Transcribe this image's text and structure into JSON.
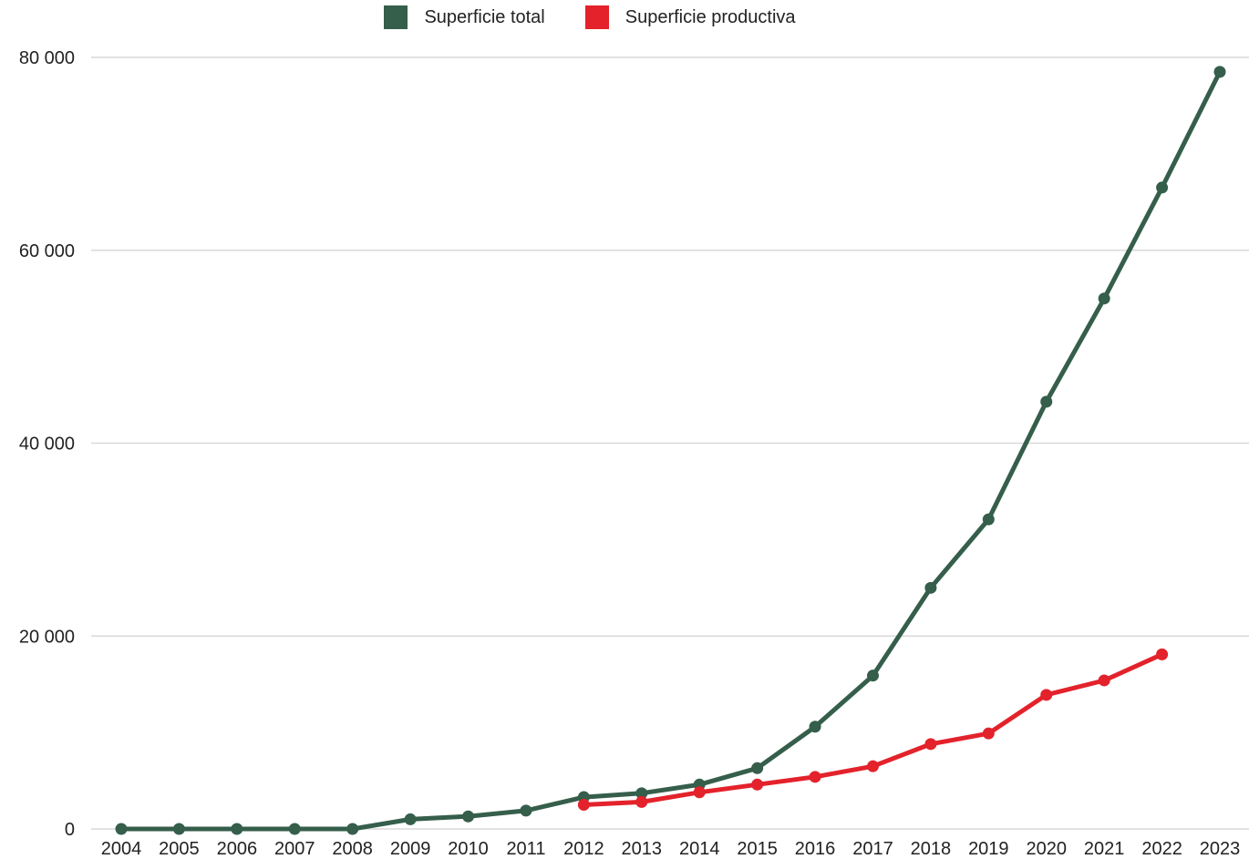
{
  "chart_data": {
    "type": "line",
    "x": [
      "2004",
      "2005",
      "2006",
      "2007",
      "2008",
      "2009",
      "2010",
      "2011",
      "2012",
      "2013",
      "2014",
      "2015",
      "2016",
      "2017",
      "2018",
      "2019",
      "2020",
      "2021",
      "2022",
      "2023"
    ],
    "series": [
      {
        "name": "Superficie total",
        "color": "#355e4b",
        "values": [
          0,
          0,
          0,
          0,
          0,
          1000,
          1300,
          1900,
          3300,
          3700,
          4600,
          6300,
          10600,
          15900,
          25000,
          32100,
          44300,
          55000,
          66500,
          78500
        ]
      },
      {
        "name": "Superficie productiva",
        "color": "#e3222b",
        "values": [
          null,
          null,
          null,
          null,
          null,
          null,
          null,
          null,
          2500,
          2800,
          3800,
          4600,
          5400,
          6500,
          8800,
          9900,
          13900,
          15400,
          18100,
          null
        ]
      }
    ],
    "yticks": [
      0,
      20000,
      40000,
      60000,
      80000
    ],
    "ytick_labels": [
      "0",
      "20 000",
      "40 000",
      "60 000",
      "80 000"
    ],
    "ylim": [
      0,
      80000
    ],
    "grid": true,
    "legend_position": "top-center",
    "title": "",
    "xlabel": "",
    "ylabel": ""
  }
}
